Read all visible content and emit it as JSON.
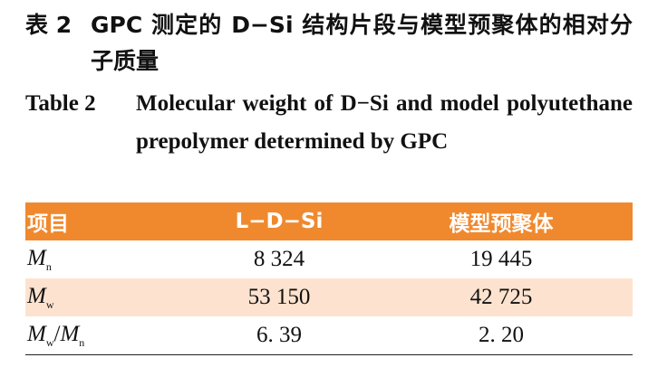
{
  "caption_cn": {
    "label": "表 2",
    "text": "GPC 测定的 D−Si 结构片段与模型预聚体的相对分子质量"
  },
  "caption_en": {
    "label": "Table 2",
    "text": "Molecular weight of D−Si and model polyutethane prepolymer determined by GPC"
  },
  "table": {
    "header": [
      "项目",
      "L−D−Si",
      "模型预聚体"
    ],
    "rows": [
      {
        "label": [
          {
            "i": "M",
            "sub": "n"
          }
        ],
        "cells": [
          "8 324",
          "19 445"
        ]
      },
      {
        "label": [
          {
            "i": "M",
            "sub": "w"
          }
        ],
        "cells": [
          "53 150",
          "42 725"
        ]
      },
      {
        "label": [
          {
            "i": "M",
            "sub": "w"
          },
          {
            "t": "/"
          },
          {
            "i": "M",
            "sub": "n"
          }
        ],
        "cells": [
          "6. 39",
          "2. 20"
        ]
      }
    ]
  }
}
